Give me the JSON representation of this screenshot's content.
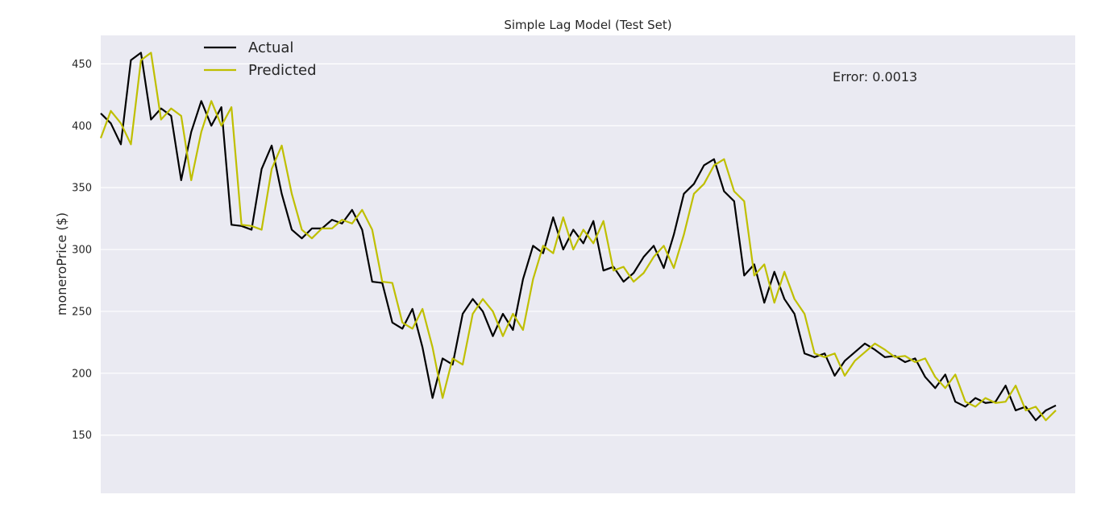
{
  "chart_data": {
    "type": "line",
    "title": "Simple Lag Model (Test Set)",
    "xlabel": "",
    "ylabel": "moneroPrice ($)",
    "ylim": [
      103,
      473
    ],
    "y_ticks": [
      150,
      200,
      250,
      300,
      350,
      400,
      450
    ],
    "grid": true,
    "legend_position": "top-left",
    "background_color": "#eaeaf2",
    "grid_color": "#ffffff",
    "annotation": "Error: 0.0013",
    "series": [
      {
        "name": "Actual",
        "color": "#000000",
        "values": [
          410,
          402,
          385,
          453,
          459,
          405,
          414,
          408,
          356,
          395,
          420,
          400,
          415,
          320,
          319,
          316,
          365,
          384,
          345,
          316,
          309,
          317,
          317,
          324,
          321,
          332,
          316,
          274,
          273,
          241,
          236,
          252,
          221,
          180,
          212,
          207,
          248,
          260,
          250,
          230,
          248,
          235,
          276,
          303,
          297,
          326,
          300,
          316,
          305,
          323,
          283,
          286,
          274,
          281,
          294,
          303,
          285,
          312,
          345,
          353,
          368,
          373,
          347,
          339,
          279,
          288,
          257,
          282,
          260,
          248,
          216,
          213,
          216,
          198,
          210,
          217,
          224,
          219,
          213,
          214,
          209,
          212,
          197,
          188,
          199,
          177,
          173,
          180,
          176,
          177,
          190,
          170,
          173,
          162,
          170,
          174
        ]
      },
      {
        "name": "Predicted",
        "color": "#bfbf00",
        "values": [
          390,
          412,
          402,
          385,
          453,
          459,
          405,
          414,
          408,
          356,
          395,
          420,
          400,
          415,
          320,
          319,
          316,
          365,
          384,
          345,
          316,
          309,
          317,
          317,
          324,
          321,
          332,
          316,
          274,
          273,
          241,
          236,
          252,
          221,
          180,
          212,
          207,
          248,
          260,
          250,
          230,
          248,
          235,
          276,
          303,
          297,
          326,
          300,
          316,
          305,
          323,
          283,
          286,
          274,
          281,
          294,
          303,
          285,
          312,
          345,
          353,
          368,
          373,
          347,
          339,
          279,
          288,
          257,
          282,
          260,
          248,
          216,
          213,
          216,
          198,
          210,
          217,
          224,
          219,
          213,
          214,
          209,
          212,
          197,
          188,
          199,
          177,
          173,
          180,
          176,
          177,
          190,
          170,
          173,
          162,
          170
        ]
      }
    ]
  }
}
